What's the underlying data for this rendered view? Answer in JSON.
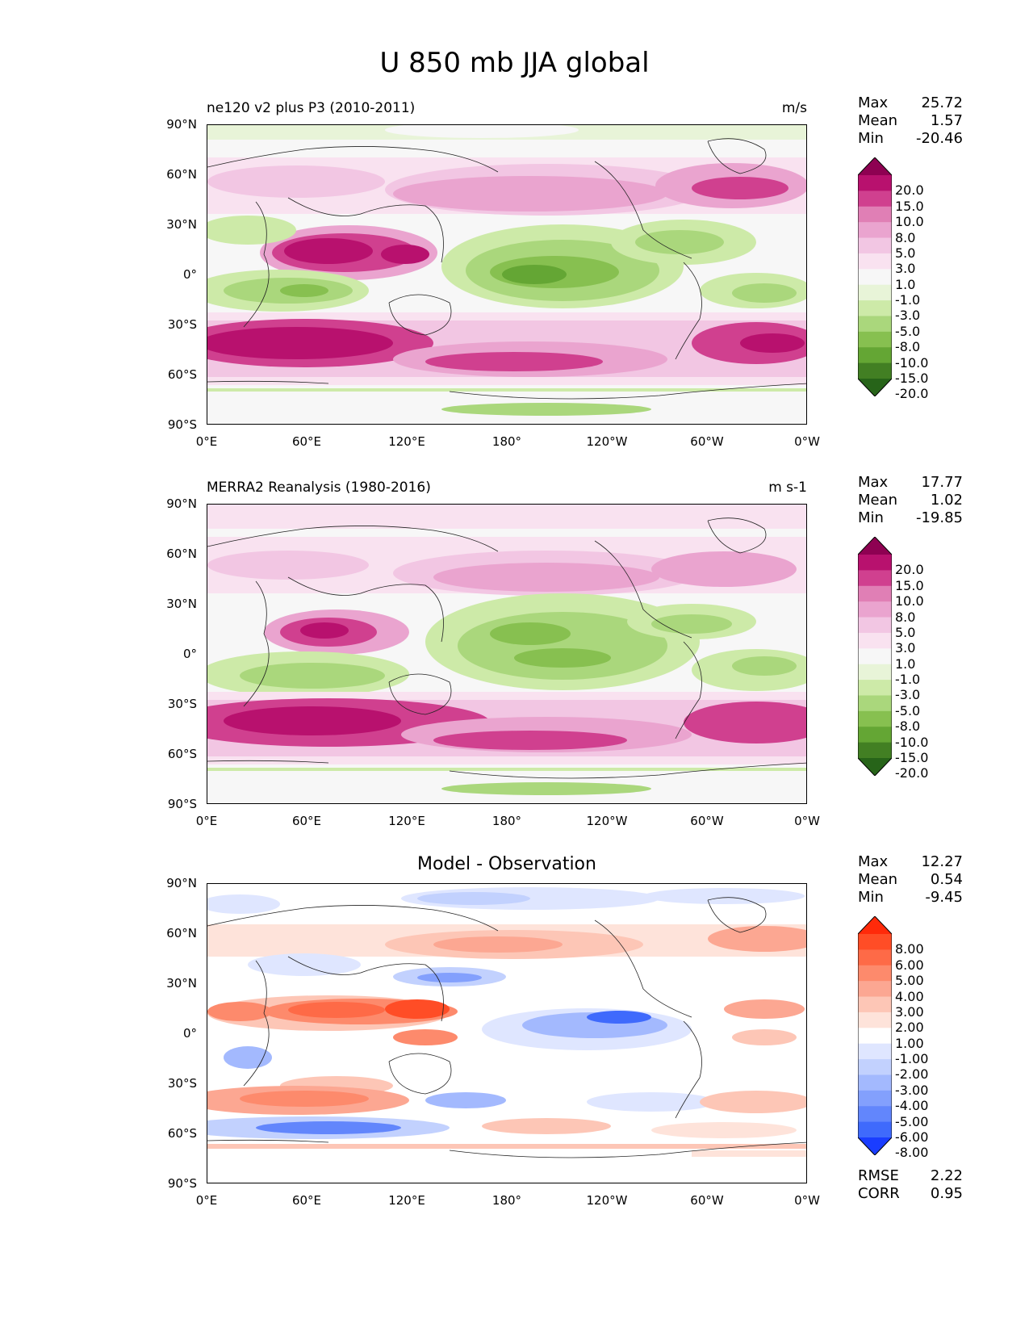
{
  "figure_title": "U 850 mb JJA global",
  "panels": [
    {
      "left_label": "ne120 v2 plus P3 (2010-2011)",
      "right_label": "m/s",
      "stats": {
        "max_label": "Max",
        "max": "25.72",
        "mean_label": "Mean",
        "mean": "1.57",
        "min_label": "Min",
        "min": "-20.46"
      }
    },
    {
      "left_label": "MERRA2 Reanalysis (1980-2016)",
      "right_label": "m s-1",
      "stats": {
        "max_label": "Max",
        "max": "17.77",
        "mean_label": "Mean",
        "mean": "1.02",
        "min_label": "Min",
        "min": "-19.85"
      }
    },
    {
      "center_label": "Model - Observation",
      "stats": {
        "max_label": "Max",
        "max": "12.27",
        "mean_label": "Mean",
        "mean": "0.54",
        "min_label": "Min",
        "min": "-9.45"
      },
      "extra_stats": {
        "rmse_label": "RMSE",
        "rmse": "2.22",
        "corr_label": "CORR",
        "corr": "0.95"
      }
    }
  ],
  "axes": {
    "lat_ticks": [
      "90°N",
      "60°N",
      "30°N",
      "0°",
      "30°S",
      "60°S",
      "90°S"
    ],
    "lon_ticks": [
      "0°E",
      "60°E",
      "120°E",
      "180°",
      "120°W",
      "60°W",
      "0°W"
    ]
  },
  "colorbars": {
    "field": {
      "levels": [
        "20.0",
        "15.0",
        "10.0",
        "8.0",
        "5.0",
        "3.0",
        "1.0",
        "-1.0",
        "-3.0",
        "-5.0",
        "-8.0",
        "-10.0",
        "-15.0",
        "-20.0"
      ],
      "colors": [
        "#8e0152",
        "#b8116e",
        "#d0408f",
        "#e07fb5",
        "#eaa4cf",
        "#f2c6e3",
        "#f9e2f0",
        "#f7f7f7",
        "#e8f4d8",
        "#cdeaa8",
        "#aad77c",
        "#87c050",
        "#64a634",
        "#427f23",
        "#276419"
      ]
    },
    "diff": {
      "levels": [
        "8.00",
        "6.00",
        "5.00",
        "4.00",
        "3.00",
        "2.00",
        "1.00",
        "-1.00",
        "-2.00",
        "-3.00",
        "-4.00",
        "-5.00",
        "-6.00",
        "-8.00"
      ],
      "colors": [
        "#ff2a0a",
        "#ff4d26",
        "#fe6a47",
        "#fd8a6c",
        "#fca792",
        "#fdc6b6",
        "#fee3da",
        "#ffffff",
        "#dfe6ff",
        "#c2d1fe",
        "#a3b9fe",
        "#83a0fd",
        "#6286fc",
        "#3f6afc",
        "#1a3dff"
      ]
    }
  },
  "map_data": {
    "projection": "PlateCarree, central_longitude 180",
    "variable": "U 850 mb",
    "season": "JJA",
    "features": [
      "coastlines",
      "filled contours"
    ]
  }
}
